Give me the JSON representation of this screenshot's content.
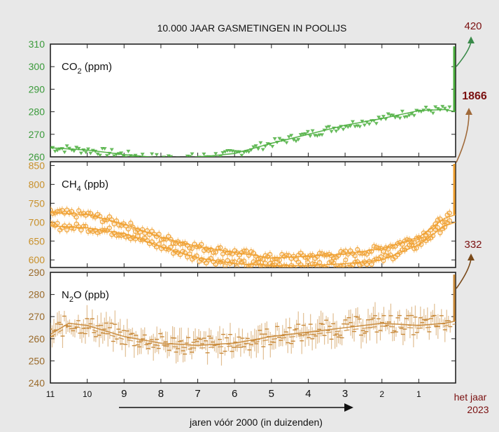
{
  "chart_data": [
    {
      "type": "scatter",
      "title": "10.000 JAAR GASMETINGEN IN POOLIJS",
      "panel_label": "CO",
      "panel_sub": "2",
      "panel_unit": " (ppm)",
      "ylim": [
        260,
        310
      ],
      "yticks": [
        "310",
        "300",
        "290",
        "280",
        "270",
        "260"
      ],
      "xlim": [
        11,
        0
      ],
      "color": "#4caf3f",
      "trend_x": [
        11,
        10,
        9,
        8,
        7,
        6,
        5,
        4,
        3,
        2,
        1,
        0.3,
        0
      ],
      "trend_y": [
        264,
        263,
        261,
        259.5,
        259.8,
        261.5,
        266,
        270,
        274,
        277,
        280.5,
        281,
        280
      ],
      "modern_value": "420"
    },
    {
      "type": "scatter",
      "panel_label": "CH",
      "panel_sub": "4",
      "panel_unit": " (ppb)",
      "ylim": [
        580,
        860
      ],
      "yticks": [
        "850",
        "800",
        "750",
        "700",
        "650",
        "600"
      ],
      "xlim": [
        11,
        0
      ],
      "color": "#f0a030",
      "series": [
        {
          "x": [
            11,
            10,
            9,
            8,
            7,
            6,
            5,
            4,
            3,
            2,
            1,
            0.3,
            0
          ],
          "y": [
            725,
            720,
            695,
            660,
            635,
            620,
            605,
            610,
            615,
            630,
            660,
            710,
            720
          ]
        },
        {
          "x": [
            11,
            10,
            9,
            8,
            7,
            6,
            5,
            4,
            3,
            2,
            1,
            0.3,
            0
          ],
          "y": [
            690,
            685,
            670,
            635,
            605,
            590,
            585,
            585,
            590,
            600,
            640,
            690,
            700
          ]
        }
      ],
      "modern_value": "1866"
    },
    {
      "type": "scatter",
      "panel_label": "N",
      "panel_sub": "2",
      "panel_unit": "O (ppb)",
      "ylim": [
        240,
        290
      ],
      "yticks": [
        "290",
        "280",
        "270",
        "260",
        "250",
        "240"
      ],
      "xlim": [
        11,
        0
      ],
      "color": "#c98a3a",
      "trend_x": [
        11,
        10.5,
        10,
        9,
        8,
        7,
        6,
        5,
        4,
        3,
        2,
        1,
        0.3,
        0
      ],
      "trend_y": [
        262,
        267,
        266,
        261,
        258,
        257,
        258,
        261,
        263,
        265,
        267,
        266,
        267,
        268
      ],
      "modern_value": "332"
    }
  ],
  "x_axis": {
    "tick_labels": [
      "11",
      "10",
      "9",
      "8",
      "7",
      "6",
      "5",
      "4",
      "3",
      "2",
      "1"
    ],
    "end_label_line1": "het jaar",
    "end_label_line2": "2023",
    "label": "jaren vóór 2000 (in duizenden)"
  },
  "colors": {
    "co2": "#4caf3f",
    "ch4": "#f0a030",
    "n2o": "#c98a3a",
    "modern": "#7a1010",
    "tick_green": "#3a9a3a",
    "tick_orange": "#c8902a",
    "tick_brown": "#9a6a2a",
    "arrow_green": "#3a8a4a",
    "arrow_tan": "#a06a3a",
    "arrow_brown": "#7a4a1a"
  }
}
